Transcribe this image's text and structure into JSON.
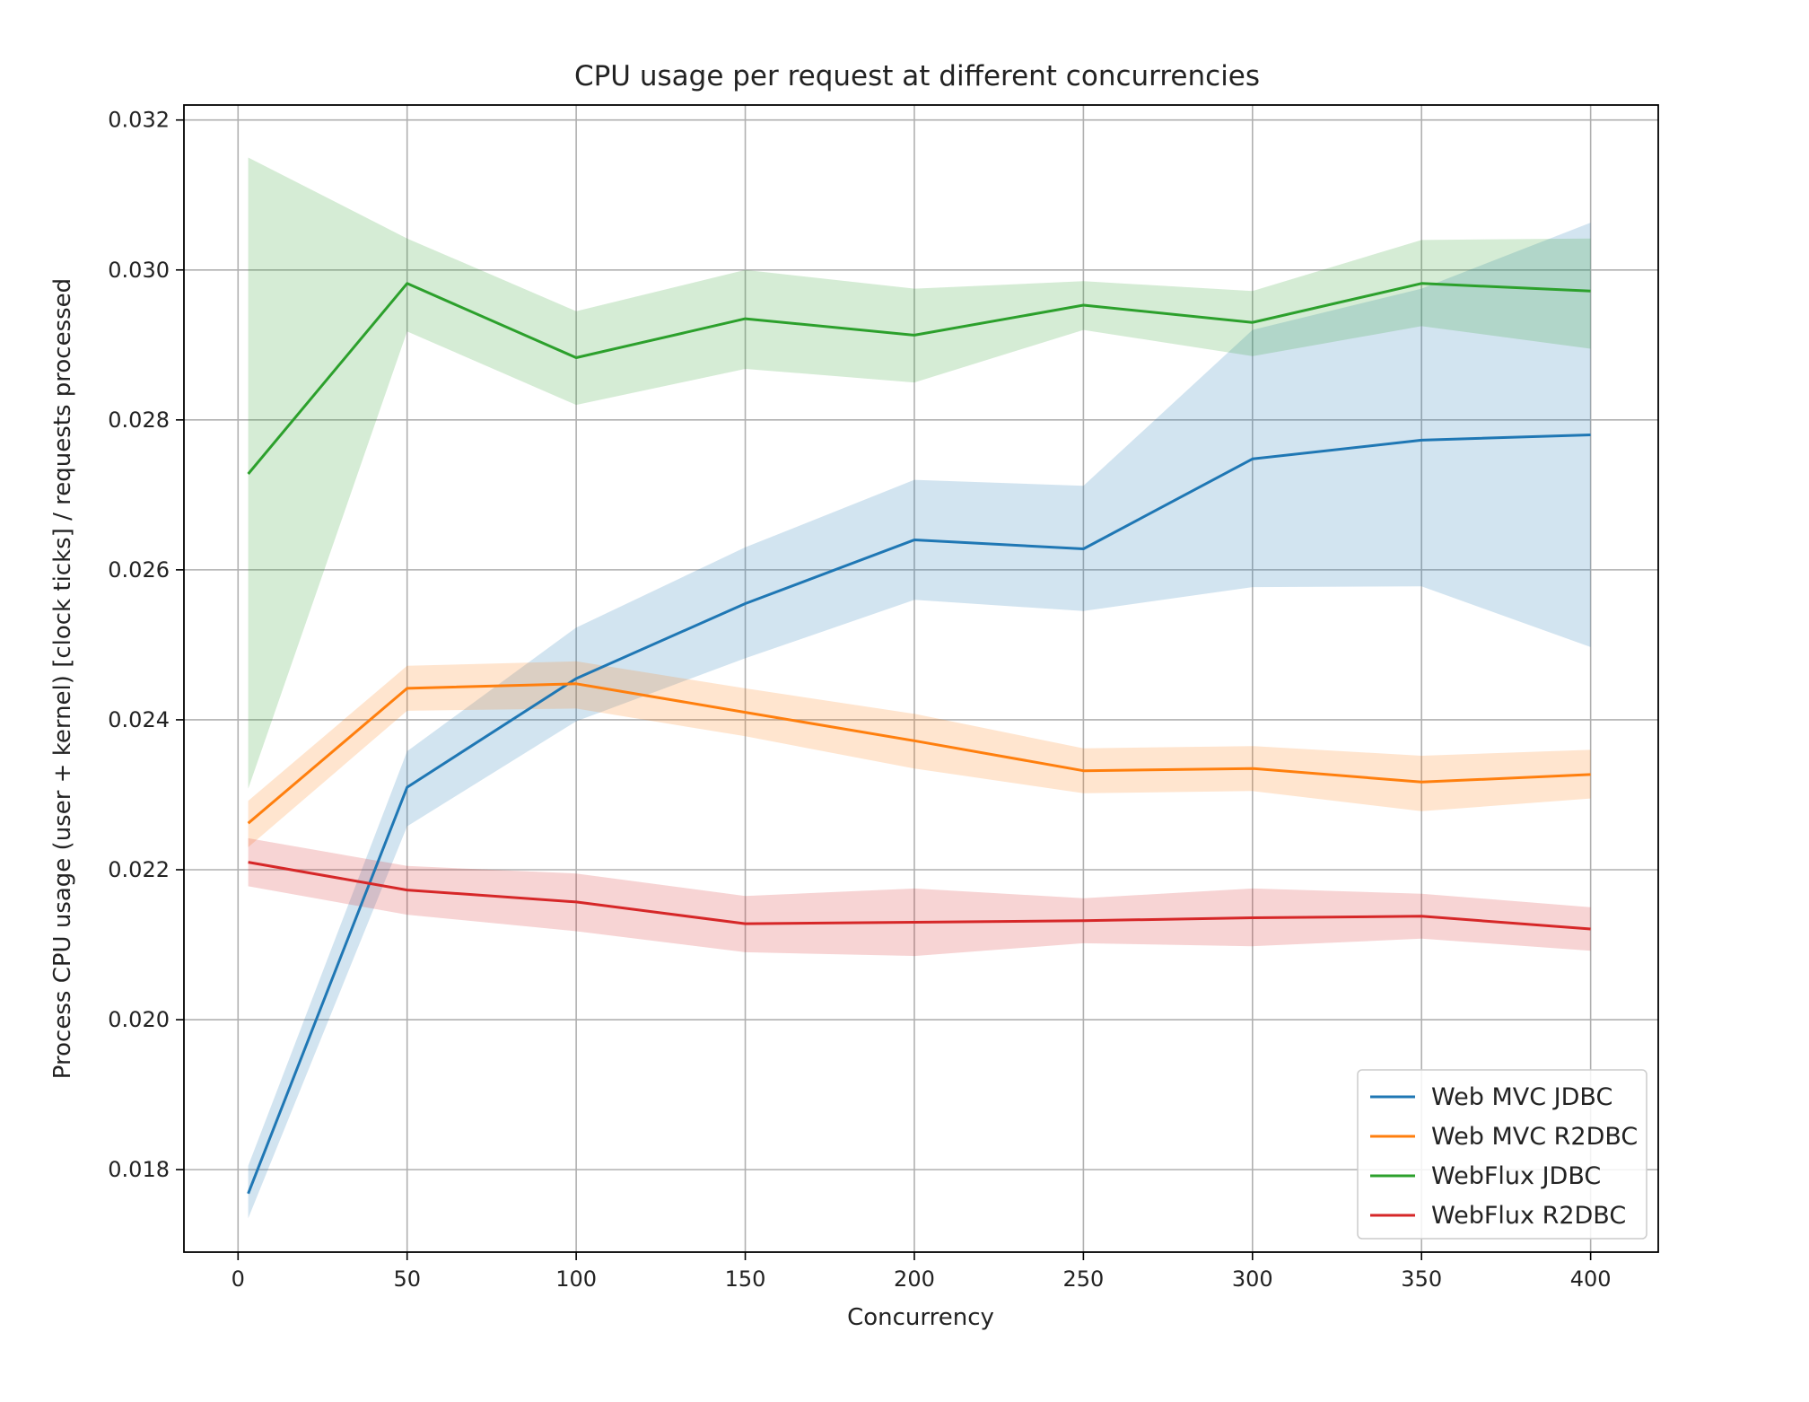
{
  "chart_data": {
    "type": "line",
    "title": "CPU usage per request at different concurrencies",
    "xlabel": "Concurrency",
    "ylabel": "Process CPU usage (user + kernel) [clock ticks] / requests processed",
    "xlim": [
      -16,
      420
    ],
    "ylim": [
      0.0169,
      0.0322
    ],
    "x_ticks": [
      0,
      50,
      100,
      150,
      200,
      250,
      300,
      350,
      400
    ],
    "y_ticks": [
      0.018,
      0.02,
      0.022,
      0.024,
      0.026,
      0.028,
      0.03,
      0.032
    ],
    "y_tick_labels": [
      "0.018",
      "0.020",
      "0.022",
      "0.024",
      "0.026",
      "0.028",
      "0.030",
      "0.032"
    ],
    "grid": true,
    "legend_position": "bottom-right",
    "x": [
      3,
      50,
      100,
      150,
      200,
      250,
      300,
      350,
      400
    ],
    "series": [
      {
        "name": "Web MVC JDBC",
        "color": "#1f77b4",
        "values": [
          0.01768,
          0.0231,
          0.02455,
          0.02555,
          0.0264,
          0.02628,
          0.02748,
          0.02773,
          0.0278
        ],
        "lower": [
          0.01735,
          0.02258,
          0.02398,
          0.02482,
          0.0256,
          0.02545,
          0.02577,
          0.02578,
          0.02497
        ],
        "upper": [
          0.01805,
          0.02358,
          0.02523,
          0.0263,
          0.0272,
          0.02712,
          0.0292,
          0.02975,
          0.03063
        ]
      },
      {
        "name": "Web MVC R2DBC",
        "color": "#ff7f0e",
        "values": [
          0.02262,
          0.02442,
          0.02448,
          0.0241,
          0.02372,
          0.02332,
          0.02335,
          0.02317,
          0.02327
        ],
        "lower": [
          0.0223,
          0.02412,
          0.02415,
          0.02378,
          0.02335,
          0.02302,
          0.02305,
          0.02278,
          0.02295
        ],
        "upper": [
          0.02292,
          0.02472,
          0.02478,
          0.02442,
          0.02408,
          0.02362,
          0.02365,
          0.02352,
          0.0236
        ]
      },
      {
        "name": "WebFlux JDBC",
        "color": "#2ca02c",
        "values": [
          0.02728,
          0.02982,
          0.02883,
          0.02935,
          0.02913,
          0.02953,
          0.0293,
          0.02982,
          0.02972
        ],
        "lower": [
          0.02308,
          0.02918,
          0.0282,
          0.02868,
          0.0285,
          0.0292,
          0.02885,
          0.02925,
          0.02895
        ],
        "upper": [
          0.0315,
          0.03042,
          0.02945,
          0.03,
          0.02975,
          0.02985,
          0.02972,
          0.0304,
          0.03042
        ]
      },
      {
        "name": "WebFlux R2DBC",
        "color": "#d62728",
        "values": [
          0.0221,
          0.02173,
          0.02157,
          0.02128,
          0.0213,
          0.02132,
          0.02136,
          0.02138,
          0.02121
        ],
        "lower": [
          0.02178,
          0.0214,
          0.02118,
          0.0209,
          0.02085,
          0.02102,
          0.02098,
          0.02108,
          0.02092
        ],
        "upper": [
          0.02242,
          0.02205,
          0.02195,
          0.02165,
          0.02175,
          0.02162,
          0.02175,
          0.02168,
          0.0215
        ]
      }
    ]
  }
}
